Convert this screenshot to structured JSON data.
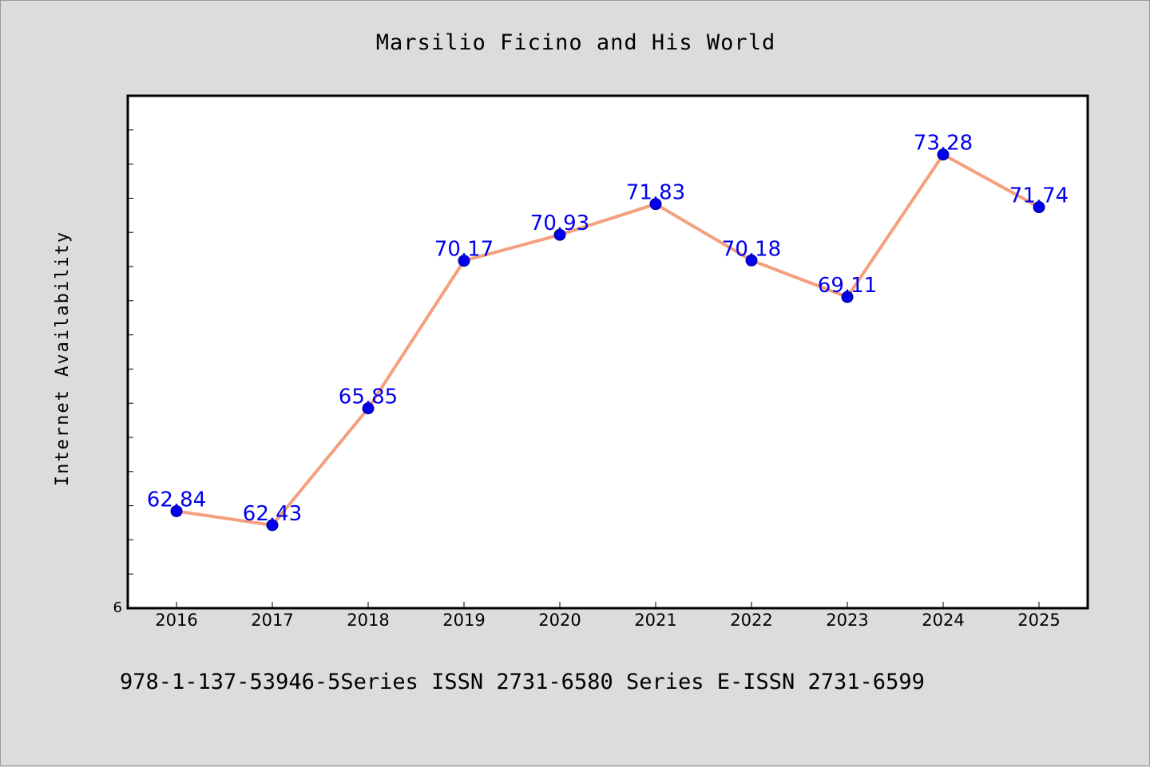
{
  "chart_data": {
    "type": "line",
    "title": "Marsilio Ficino and His World",
    "xlabel": "",
    "ylabel": "Internet Availability",
    "x": [
      "2016",
      "2017",
      "2018",
      "2019",
      "2020",
      "2021",
      "2022",
      "2023",
      "2024",
      "2025"
    ],
    "series": [
      {
        "values": [
          62.84,
          62.43,
          65.85,
          70.17,
          70.93,
          71.83,
          70.18,
          69.11,
          73.28,
          71.74
        ],
        "data_labels": [
          "62.84",
          "62.43",
          "65.85",
          "70.17",
          "70.93",
          "71.83",
          "70.18",
          "69.11",
          "73.28",
          "71.74"
        ]
      }
    ],
    "ylim": [
      60,
      75
    ],
    "y_tick_label": "6",
    "grid": false,
    "legend": "none",
    "colors": {
      "line": "#f4a07f",
      "marker": "#0000ee",
      "label": "#0000ee",
      "plot_bg": "#ffffff",
      "page_bg": "#dcdcdc"
    }
  },
  "footer": {
    "text": "978-1-137-53946-5Series ISSN 2731-6580 Series E-ISSN 2731-6599"
  }
}
